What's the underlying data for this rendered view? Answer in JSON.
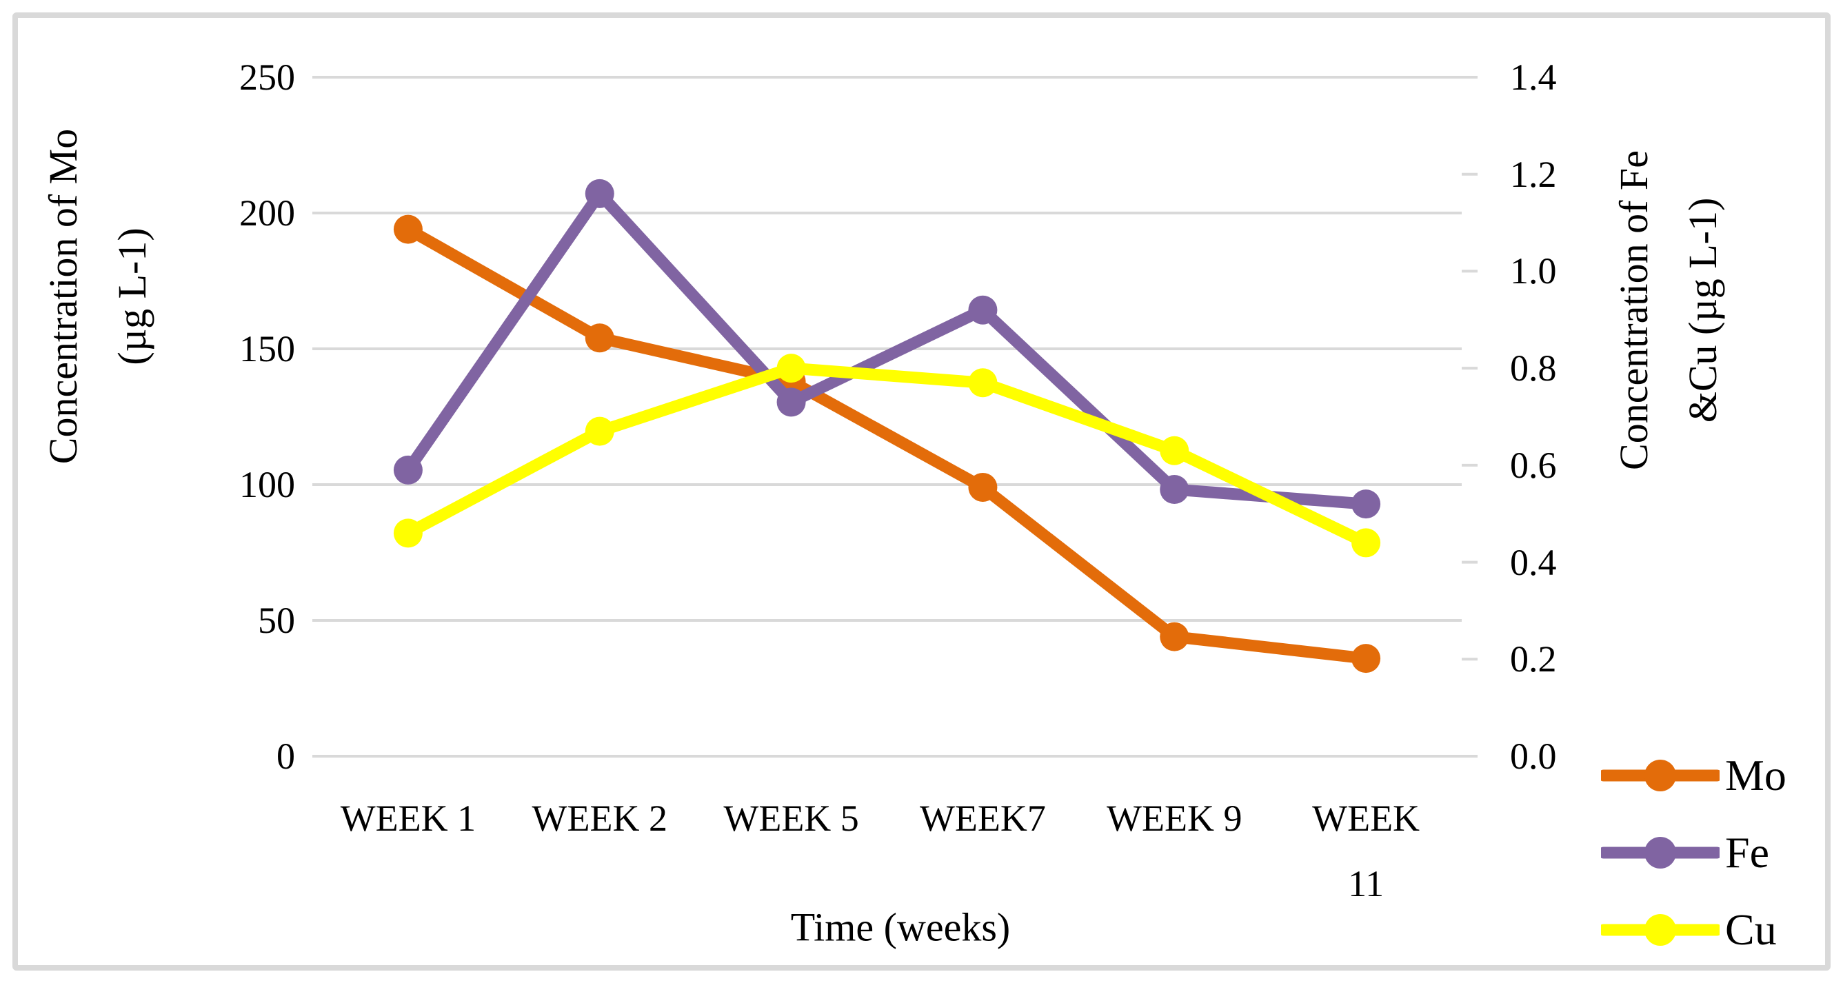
{
  "chart_data": {
    "type": "line",
    "title": "",
    "categories": [
      "WEEK 1",
      "WEEK 2",
      "WEEK 5",
      "WEEK7",
      "WEEK 9",
      "WEEK\n11"
    ],
    "x_axis_title": "Time (weeks)",
    "left_axis": {
      "title_line1": "Concentration of Mo",
      "title_line2": "(µg L-1)",
      "min": 0,
      "max": 250,
      "step": 50,
      "tick_labels": [
        "250",
        "200",
        "150",
        "100",
        "50",
        "0"
      ]
    },
    "right_axis": {
      "title_line1": "Concentration of Fe",
      "title_line2": "&Cu (µg L-1)",
      "min": 0.0,
      "max": 1.4,
      "step": 0.2,
      "tick_labels": [
        "1.4",
        "1.2",
        "1.0",
        "0.8",
        "0.6",
        "0.4",
        "0.2",
        "0.0"
      ]
    },
    "series": [
      {
        "name": "Mo",
        "axis": "left",
        "color": "#E36C0A",
        "values": [
          194,
          154,
          138,
          99,
          44,
          36
        ]
      },
      {
        "name": "Fe",
        "axis": "right",
        "color": "#8064A2",
        "values": [
          0.59,
          1.16,
          0.73,
          0.92,
          0.55,
          0.52
        ]
      },
      {
        "name": "Cu",
        "axis": "right",
        "color": "#FFFF00",
        "values": [
          0.46,
          0.67,
          0.8,
          0.77,
          0.63,
          0.44
        ]
      }
    ],
    "gridline_color": "#D9D9D9",
    "frame_color": "#D9D9D9",
    "grid": "horizontal-only",
    "legend_position": "bottom-right"
  }
}
